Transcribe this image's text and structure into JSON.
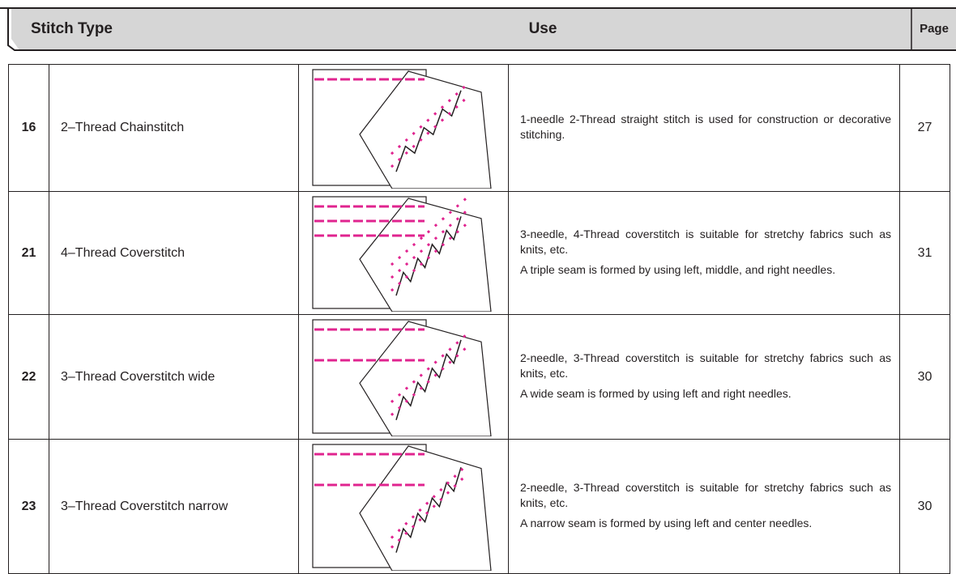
{
  "header": {
    "columns": [
      "Stitch Type",
      "Use",
      "Page"
    ]
  },
  "table": {
    "rows": [
      {
        "number": "16",
        "name": "2–Thread Chainstitch",
        "use": [
          "1-needle 2-Thread straight stitch is used for construction or decorative stitching."
        ],
        "page": "27"
      },
      {
        "number": "21",
        "name": "4–Thread Coverstitch",
        "use": [
          "3-needle, 4-Thread coverstitch is suitable for stretchy fabrics such as knits, etc.",
          "A triple seam is formed by using left, middle, and right needles."
        ],
        "page": "31"
      },
      {
        "number": "22",
        "name": "3–Thread Coverstitch wide",
        "use": [
          "2-needle, 3-Thread coverstitch is suitable for stretchy fabrics such as knits, etc.",
          "A wide seam is formed by using left and right needles."
        ],
        "page": "30"
      },
      {
        "number": "23",
        "name": "3–Thread Coverstitch narrow",
        "use": [
          "2-needle, 3-Thread coverstitch is suitable for stretchy fabrics such as knits, etc.",
          "A narrow seam is formed by using left and center needles."
        ],
        "page": "30"
      }
    ]
  }
}
